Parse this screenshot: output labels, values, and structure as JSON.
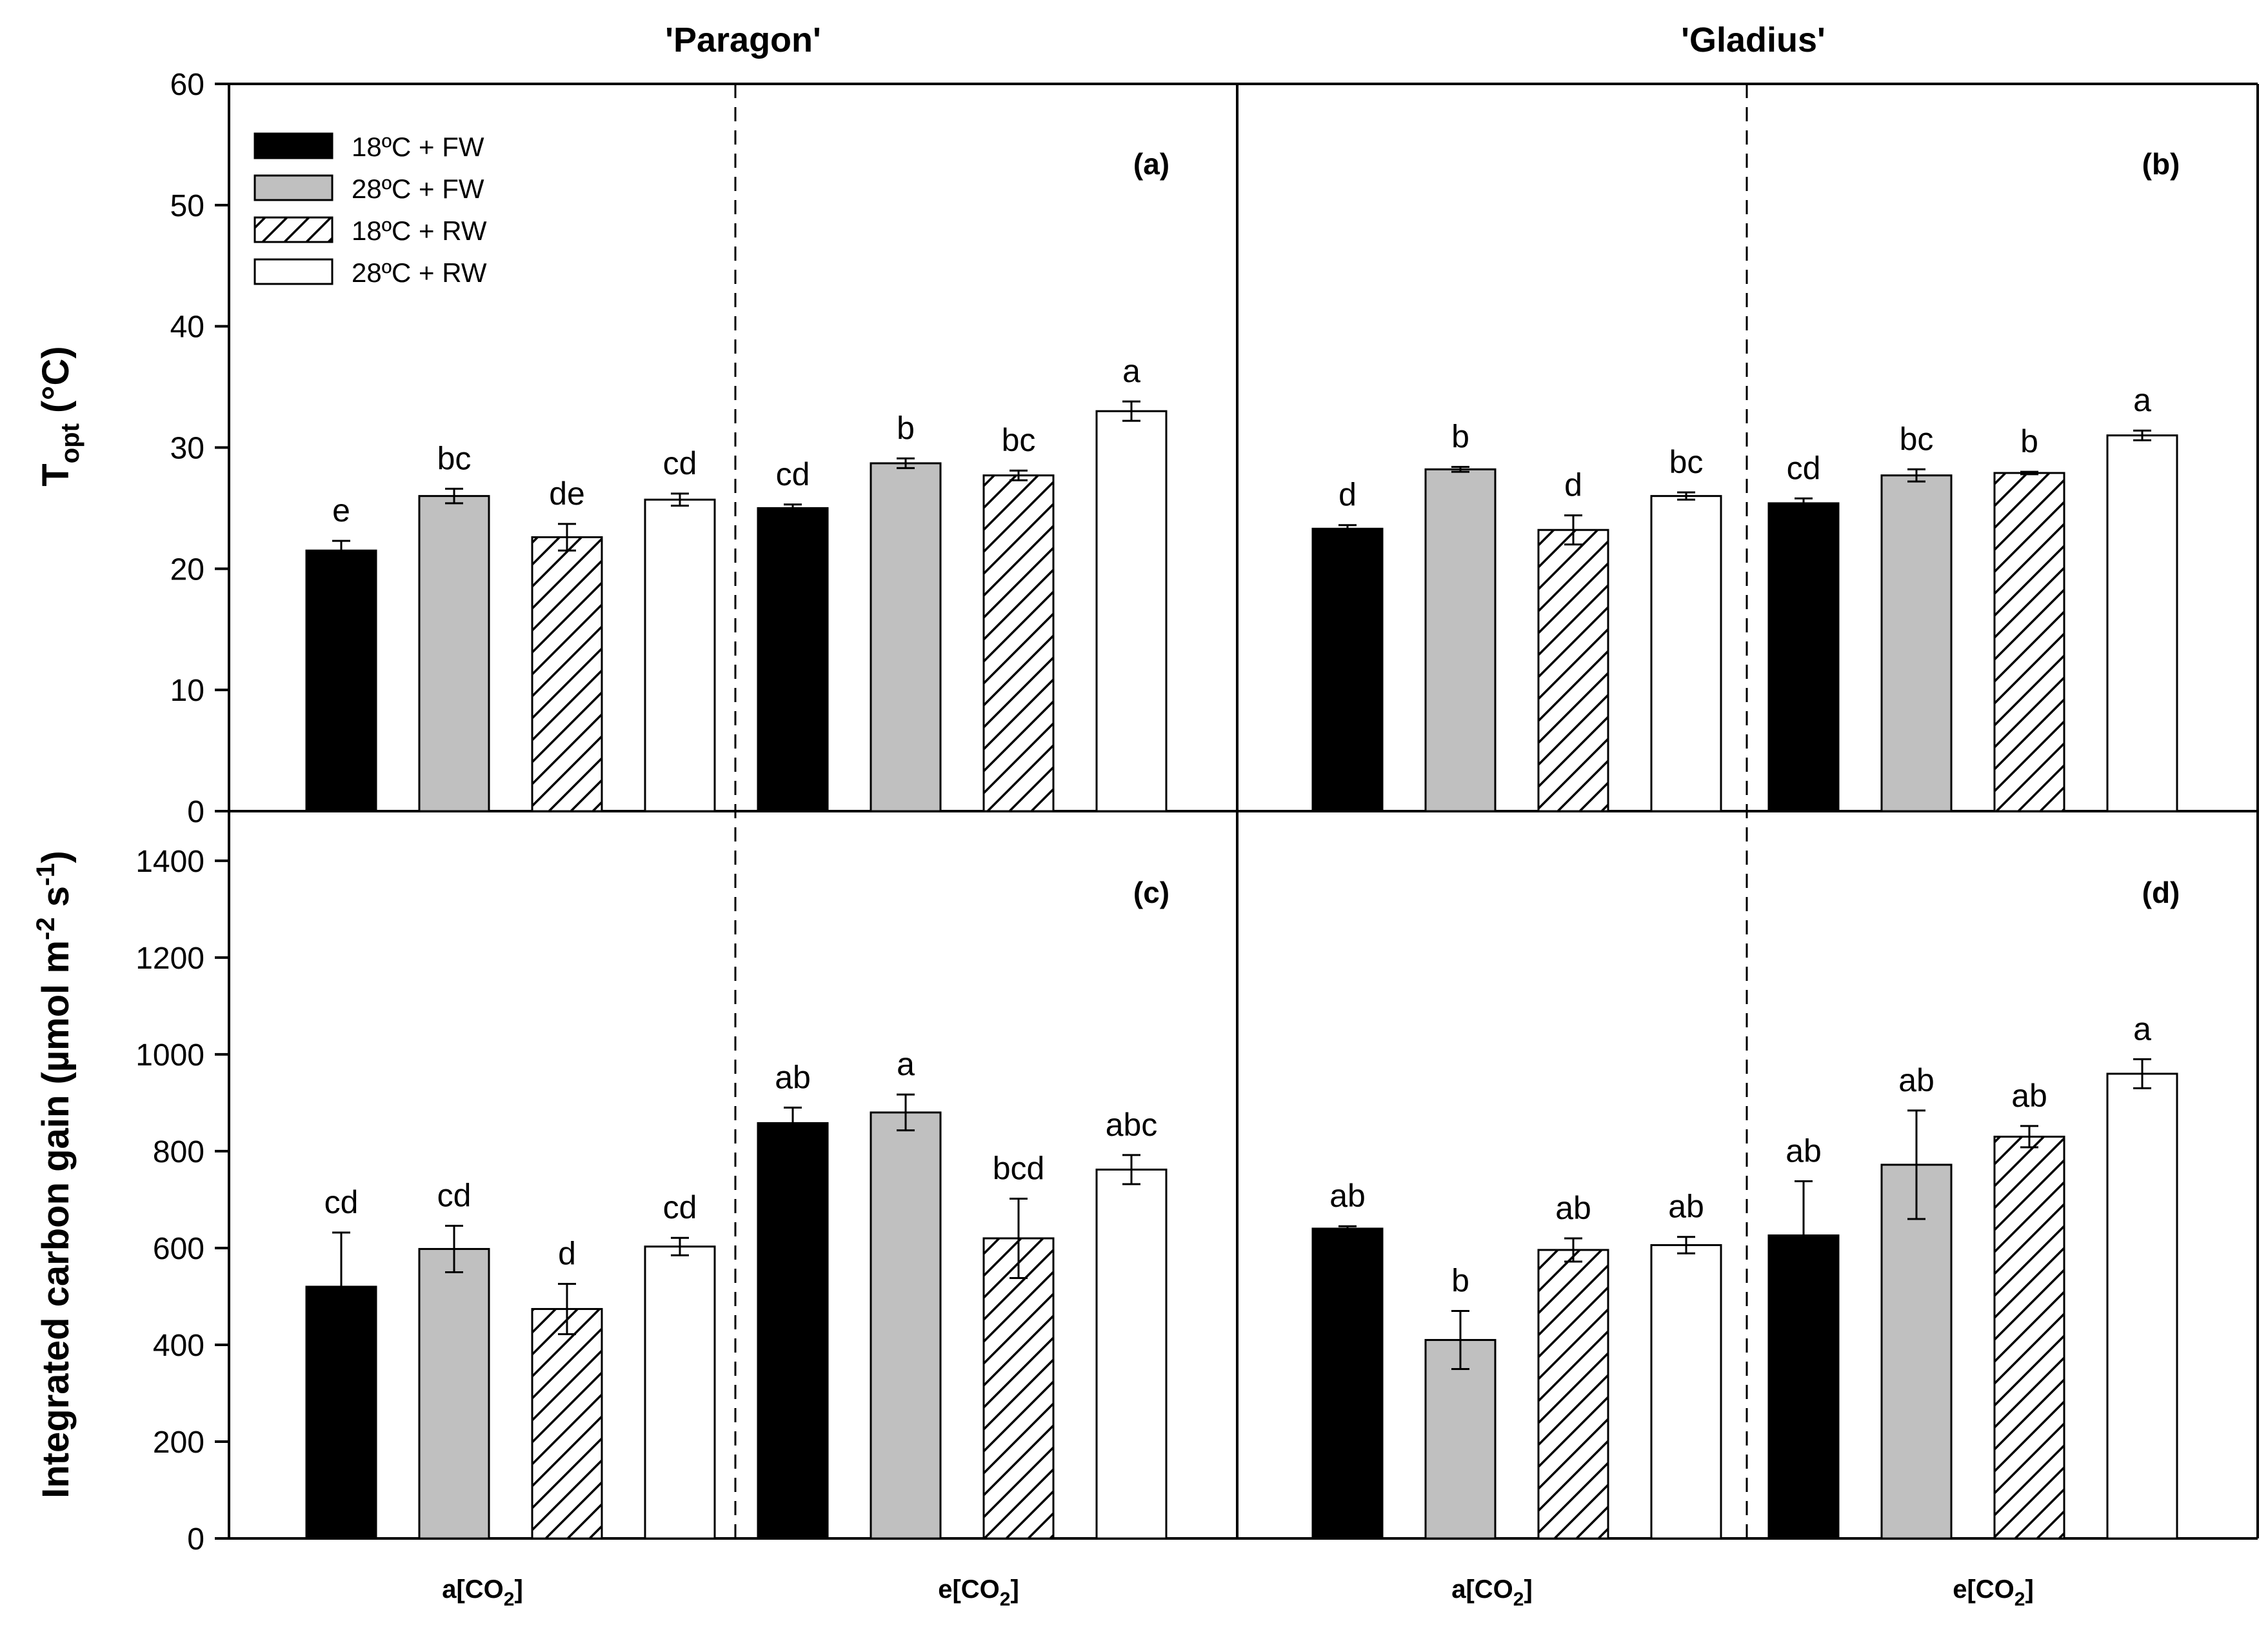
{
  "chart_data": {
    "type": "bar",
    "titles": [
      "'Paragon'",
      "'Gladius'"
    ],
    "group_labels": [
      {
        "main": "a[CO",
        "sub": "2",
        "tail": "]"
      },
      {
        "main": "e[CO",
        "sub": "2",
        "tail": "]"
      },
      {
        "main": "a[CO",
        "sub": "2",
        "tail": "]"
      },
      {
        "main": "e[CO",
        "sub": "2",
        "tail": "]"
      }
    ],
    "legend": [
      {
        "label": "18ºC + FW",
        "fill": "#000000",
        "pattern": "none"
      },
      {
        "label": "28ºC + FW",
        "fill": "#c0c0c0",
        "pattern": "none"
      },
      {
        "label": "18ºC + RW",
        "fill": "#ffffff",
        "pattern": "hatch"
      },
      {
        "label": "28ºC + RW",
        "fill": "#ffffff",
        "pattern": "none"
      }
    ],
    "top": {
      "ylabel": {
        "main": "T",
        "sub": "opt",
        "tail": " (°C)"
      },
      "ylim": [
        0,
        60
      ],
      "yticks": [
        "0",
        "10",
        "20",
        "30",
        "40",
        "50",
        "60"
      ],
      "panel_labels": [
        "(a)",
        "(b)"
      ],
      "groups": [
        {
          "values": [
            21.5,
            26.0,
            22.6,
            25.7
          ],
          "errors": [
            0.8,
            0.6,
            1.1,
            0.5
          ],
          "letters": [
            "e",
            "bc",
            "de",
            "cd"
          ]
        },
        {
          "values": [
            25.0,
            28.7,
            27.7,
            33.0
          ],
          "errors": [
            0.3,
            0.4,
            0.4,
            0.8
          ],
          "letters": [
            "cd",
            "b",
            "bc",
            "a"
          ]
        },
        {
          "values": [
            23.3,
            28.2,
            23.2,
            26.0
          ],
          "errors": [
            0.3,
            0.2,
            1.2,
            0.3
          ],
          "letters": [
            "d",
            "b",
            "d",
            "bc"
          ]
        },
        {
          "values": [
            25.4,
            27.7,
            27.9,
            31.0
          ],
          "errors": [
            0.4,
            0.5,
            0.1,
            0.4
          ],
          "letters": [
            "cd",
            "bc",
            "b",
            "a"
          ]
        }
      ]
    },
    "bottom": {
      "ylabel": {
        "main": "Integrated carbon gain (µmol m",
        "sup1": "-2",
        "mid": " s",
        "sup2": "-1",
        "tail": ")"
      },
      "ylim": [
        0,
        1500
      ],
      "yticks": [
        "0",
        "200",
        "400",
        "600",
        "800",
        "1000",
        "1200",
        "1400"
      ],
      "panel_labels": [
        "(c)",
        "(d)"
      ],
      "groups": [
        {
          "values": [
            520,
            598,
            474,
            603
          ],
          "errors": [
            112,
            48,
            52,
            18
          ],
          "letters": [
            "cd",
            "cd",
            "d",
            "cd"
          ]
        },
        {
          "values": [
            858,
            880,
            620,
            762
          ],
          "errors": [
            32,
            37,
            82,
            30
          ],
          "letters": [
            "ab",
            "a",
            "bcd",
            "abc"
          ]
        },
        {
          "values": [
            640,
            410,
            596,
            606
          ],
          "errors": [
            5,
            60,
            24,
            17
          ],
          "letters": [
            "ab",
            "b",
            "ab",
            "ab"
          ]
        },
        {
          "values": [
            626,
            772,
            830,
            960
          ],
          "errors": [
            112,
            112,
            22,
            30
          ],
          "letters": [
            "ab",
            "ab",
            "ab",
            "a"
          ]
        }
      ]
    }
  }
}
